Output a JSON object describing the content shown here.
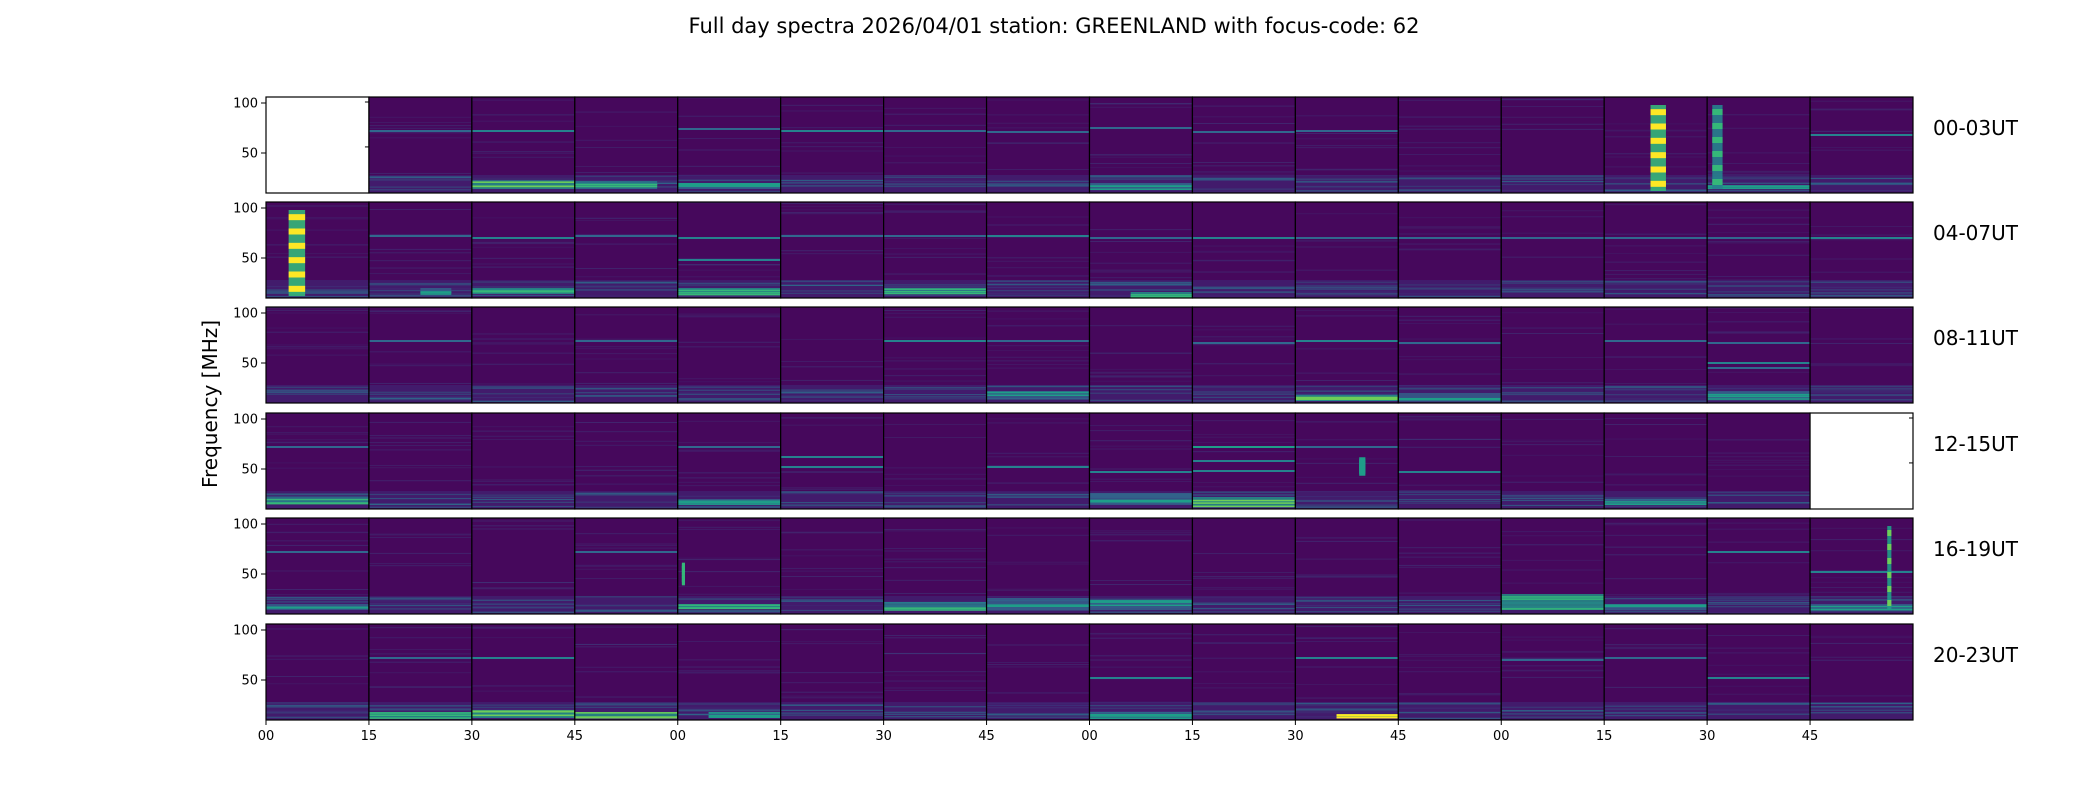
{
  "chart_data": {
    "type": "heatmap",
    "title": "Full day spectra 2026/04/01 station: GREENLAND with focus-code: 62",
    "ylabel": "Frequency [MHz]",
    "xlabel": "",
    "ylim": [
      10,
      106
    ],
    "y_ticks": [
      "100",
      "50"
    ],
    "y_tick_values": [
      100,
      50
    ],
    "x_ticks": [
      "00",
      "15",
      "30",
      "45",
      "00",
      "15",
      "30",
      "45",
      "00",
      "15",
      "30",
      "45",
      "00",
      "15",
      "30",
      "45"
    ],
    "colormap": [
      "#440154",
      "#482878",
      "#3e4989",
      "#31688e",
      "#26828e",
      "#1f9e89",
      "#35b779",
      "#6ece58",
      "#b5de2b",
      "#fde725"
    ],
    "panels_per_row": 16,
    "minutes_per_panel": 15,
    "rows": [
      {
        "label": "00-03UT",
        "empty_panels": [
          0
        ],
        "lines": [
          [
            1,
            72,
            0.35
          ],
          [
            2,
            72,
            0.45
          ],
          [
            4,
            74,
            0.3
          ],
          [
            5,
            72,
            0.4
          ],
          [
            6,
            72,
            0.3
          ],
          [
            7,
            71,
            0.3
          ],
          [
            8,
            75,
            0.3
          ],
          [
            9,
            71,
            0.3
          ],
          [
            10,
            72,
            0.35
          ],
          [
            15,
            68,
            0.4
          ]
        ],
        "bursts": [
          [
            2,
            0.0,
            1.0,
            14,
            22,
            0.55
          ],
          [
            3,
            0.0,
            0.8,
            14,
            22,
            0.45
          ],
          [
            4,
            0.0,
            1.0,
            14,
            20,
            0.3
          ],
          [
            8,
            0.0,
            1.0,
            14,
            20,
            0.35
          ],
          [
            14,
            0.0,
            1.0,
            14,
            18,
            0.3
          ]
        ],
        "vbands": [
          [
            13,
            0.45,
            0.6,
            12,
            98,
            0.95
          ],
          [
            14,
            0.05,
            0.15,
            14,
            98,
            0.7
          ]
        ]
      },
      {
        "label": "04-07UT",
        "empty_panels": [],
        "lines": [
          [
            1,
            72,
            0.35
          ],
          [
            2,
            70,
            0.45
          ],
          [
            3,
            72,
            0.3
          ],
          [
            4,
            70,
            0.45
          ],
          [
            4,
            48,
            0.45
          ],
          [
            5,
            72,
            0.3
          ],
          [
            6,
            72,
            0.3
          ],
          [
            7,
            72,
            0.45
          ],
          [
            8,
            70,
            0.3
          ],
          [
            9,
            70,
            0.45
          ],
          [
            10,
            70,
            0.35
          ],
          [
            11,
            70,
            0.3
          ],
          [
            12,
            70,
            0.35
          ],
          [
            13,
            70,
            0.3
          ],
          [
            14,
            70,
            0.3
          ],
          [
            15,
            70,
            0.4
          ]
        ],
        "bursts": [
          [
            2,
            0.0,
            1.0,
            14,
            20,
            0.5
          ],
          [
            4,
            0.0,
            1.0,
            14,
            20,
            0.5
          ],
          [
            6,
            0.0,
            1.0,
            14,
            20,
            0.45
          ],
          [
            8,
            0.4,
            1.0,
            12,
            16,
            0.5
          ],
          [
            1,
            0.5,
            0.8,
            14,
            20,
            0.3
          ]
        ],
        "vbands": [
          [
            0,
            0.22,
            0.38,
            12,
            98,
            0.95
          ]
        ]
      },
      {
        "label": "08-11UT",
        "empty_panels": [],
        "lines": [
          [
            1,
            72,
            0.3
          ],
          [
            3,
            72,
            0.3
          ],
          [
            6,
            72,
            0.4
          ],
          [
            7,
            72,
            0.3
          ],
          [
            9,
            70,
            0.3
          ],
          [
            10,
            72,
            0.4
          ],
          [
            11,
            70,
            0.3
          ],
          [
            13,
            72,
            0.3
          ],
          [
            14,
            70,
            0.3
          ],
          [
            14,
            50,
            0.45
          ],
          [
            14,
            45,
            0.35
          ]
        ],
        "bursts": [
          [
            7,
            0.0,
            1.0,
            14,
            22,
            0.35
          ],
          [
            10,
            0.0,
            1.0,
            12,
            18,
            0.6
          ],
          [
            11,
            0.0,
            1.0,
            14,
            20,
            0.35
          ],
          [
            14,
            0.0,
            1.0,
            14,
            22,
            0.3
          ]
        ],
        "vbands": []
      },
      {
        "label": "12-15UT",
        "empty_panels": [
          15
        ],
        "lines": [
          [
            0,
            72,
            0.3
          ],
          [
            4,
            72,
            0.3
          ],
          [
            5,
            62,
            0.45
          ],
          [
            5,
            52,
            0.45
          ],
          [
            7,
            52,
            0.45
          ],
          [
            8,
            47,
            0.45
          ],
          [
            9,
            72,
            0.5
          ],
          [
            9,
            58,
            0.45
          ],
          [
            9,
            48,
            0.45
          ],
          [
            10,
            72,
            0.3
          ],
          [
            11,
            47,
            0.4
          ]
        ],
        "bursts": [
          [
            0,
            0.0,
            1.0,
            16,
            22,
            0.45
          ],
          [
            8,
            0.0,
            1.0,
            14,
            26,
            0.35
          ],
          [
            9,
            0.0,
            1.0,
            12,
            22,
            0.55
          ],
          [
            13,
            0.0,
            1.0,
            14,
            20,
            0.35
          ],
          [
            4,
            0.0,
            1.0,
            14,
            20,
            0.3
          ]
        ],
        "vbands": [
          [
            10,
            0.62,
            0.68,
            45,
            60,
            0.6
          ]
        ]
      },
      {
        "label": "16-19UT",
        "empty_panels": [],
        "lines": [
          [
            0,
            72,
            0.35
          ],
          [
            3,
            72,
            0.3
          ],
          [
            14,
            72,
            0.4
          ],
          [
            15,
            52,
            0.45
          ]
        ],
        "bursts": [
          [
            0,
            0.0,
            1.0,
            14,
            20,
            0.35
          ],
          [
            4,
            0.0,
            1.0,
            16,
            20,
            0.5
          ],
          [
            6,
            0.0,
            1.0,
            14,
            22,
            0.45
          ],
          [
            7,
            0.0,
            1.0,
            14,
            26,
            0.35
          ],
          [
            8,
            0.0,
            1.0,
            14,
            24,
            0.35
          ],
          [
            12,
            0.0,
            1.0,
            14,
            30,
            0.5
          ],
          [
            13,
            0.0,
            1.0,
            14,
            20,
            0.3
          ],
          [
            15,
            0.0,
            1.0,
            14,
            20,
            0.35
          ]
        ],
        "vbands": [
          [
            4,
            0.04,
            0.07,
            40,
            60,
            0.7
          ],
          [
            15,
            0.75,
            0.79,
            14,
            98,
            0.8
          ]
        ]
      },
      {
        "label": "20-23UT",
        "empty_panels": [],
        "lines": [
          [
            1,
            72,
            0.3
          ],
          [
            2,
            72,
            0.45
          ],
          [
            8,
            52,
            0.45
          ],
          [
            10,
            72,
            0.45
          ],
          [
            12,
            70,
            0.35
          ],
          [
            13,
            72,
            0.3
          ],
          [
            14,
            52,
            0.4
          ]
        ],
        "bursts": [
          [
            1,
            0.0,
            1.0,
            12,
            18,
            0.5
          ],
          [
            2,
            0.0,
            1.0,
            12,
            20,
            0.6
          ],
          [
            3,
            0.0,
            1.0,
            12,
            18,
            0.55
          ],
          [
            4,
            0.3,
            1.0,
            12,
            18,
            0.35
          ],
          [
            10,
            0.4,
            1.0,
            12,
            16,
            0.75
          ],
          [
            8,
            0.0,
            1.0,
            12,
            18,
            0.3
          ]
        ],
        "vbands": []
      }
    ]
  }
}
